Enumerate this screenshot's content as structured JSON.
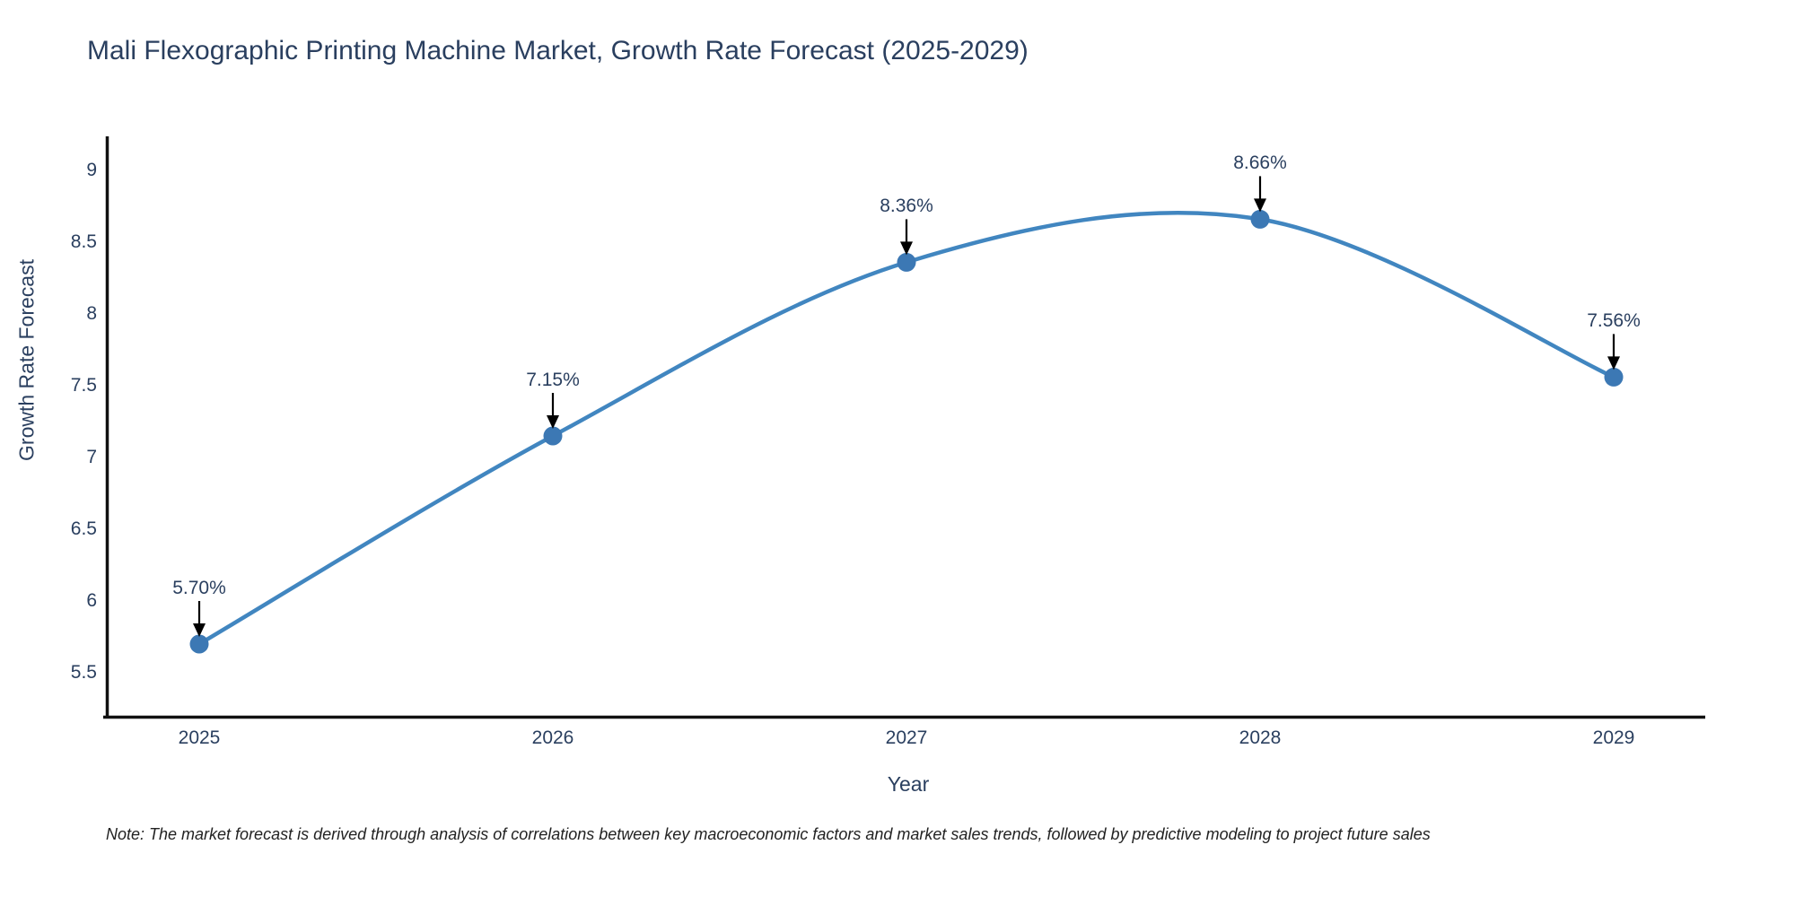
{
  "chart": {
    "title": "Mali Flexographic Printing Machine Market, Growth Rate Forecast (2025-2029)",
    "ylabel": "Growth Rate Forecast",
    "xlabel": "Year",
    "note": "Note: The market forecast is derived through analysis of correlations between key macroeconomic factors and market sales trends, followed by predictive modeling to project future sales"
  },
  "chart_data": {
    "type": "line",
    "title": "Mali Flexographic Printing Machine Market, Growth Rate Forecast (2025-2029)",
    "xlabel": "Year",
    "ylabel": "Growth Rate Forecast",
    "x": [
      2025,
      2026,
      2027,
      2028,
      2029
    ],
    "values": [
      5.7,
      7.15,
      8.36,
      8.66,
      7.56
    ],
    "point_labels": [
      "5.70%",
      "7.15%",
      "8.36%",
      "8.66%",
      "7.56%"
    ],
    "yticks": [
      5.5,
      6,
      6.5,
      7,
      7.5,
      8,
      8.5,
      9
    ],
    "ylim": [
      5.19,
      9.24
    ],
    "line_shape": "spline",
    "grid": false,
    "legend": "none",
    "colors": {
      "line": "#4186c0",
      "marker": "#3c78b4",
      "text": "#2a3f5f",
      "axis": "#111111",
      "arrow": "#000000",
      "note_text": "#222222"
    }
  }
}
